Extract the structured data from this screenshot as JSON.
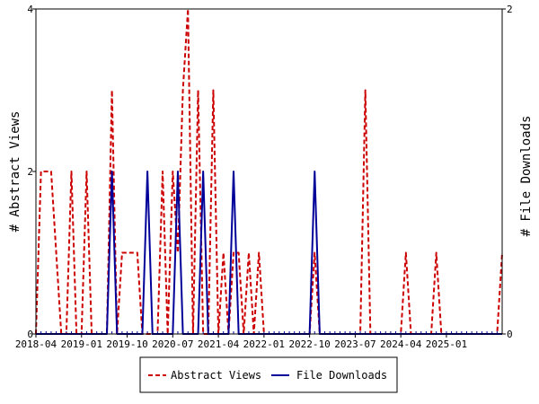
{
  "chart_data": {
    "type": "line",
    "title": "",
    "xlabel": "",
    "ylabel_left": "# Abstract Views",
    "ylabel_right": "# File Downloads",
    "xlim_months": [
      "2018-04",
      "2025-12"
    ],
    "y_left": {
      "range": [
        0,
        4
      ],
      "ticks": [
        0,
        2,
        4
      ]
    },
    "y_right": {
      "range": [
        0,
        2
      ],
      "ticks": [
        0,
        2
      ]
    },
    "x_tick_labels": [
      "2018-04",
      "2019-01",
      "2019-10",
      "2020-07",
      "2021-04",
      "2022-01",
      "2022-10",
      "2023-07",
      "2024-04",
      "2025-01"
    ],
    "grid": false,
    "legend": {
      "placement": "bottom-center"
    },
    "series": [
      {
        "name": "Abstract Views",
        "axis": "left",
        "color": "#cc0000",
        "dash": true,
        "values": [
          {
            "x": "2018-04",
            "y": 0
          },
          {
            "x": "2018-05",
            "y": 2
          },
          {
            "x": "2018-06",
            "y": 2
          },
          {
            "x": "2018-07",
            "y": 2
          },
          {
            "x": "2018-08",
            "y": 1
          },
          {
            "x": "2018-09",
            "y": 0
          },
          {
            "x": "2018-10",
            "y": 0
          },
          {
            "x": "2018-11",
            "y": 2
          },
          {
            "x": "2018-12",
            "y": 0
          },
          {
            "x": "2019-01",
            "y": 0
          },
          {
            "x": "2019-02",
            "y": 2
          },
          {
            "x": "2019-03",
            "y": 0
          },
          {
            "x": "2019-04",
            "y": 0
          },
          {
            "x": "2019-05",
            "y": 0
          },
          {
            "x": "2019-06",
            "y": 0
          },
          {
            "x": "2019-07",
            "y": 3
          },
          {
            "x": "2019-08",
            "y": 0
          },
          {
            "x": "2019-09",
            "y": 1
          },
          {
            "x": "2019-10",
            "y": 1
          },
          {
            "x": "2019-11",
            "y": 1
          },
          {
            "x": "2019-12",
            "y": 1
          },
          {
            "x": "2020-01",
            "y": 0
          },
          {
            "x": "2020-02",
            "y": 0
          },
          {
            "x": "2020-03",
            "y": 0
          },
          {
            "x": "2020-04",
            "y": 0
          },
          {
            "x": "2020-05",
            "y": 2
          },
          {
            "x": "2020-06",
            "y": 0
          },
          {
            "x": "2020-07",
            "y": 2
          },
          {
            "x": "2020-08",
            "y": 1
          },
          {
            "x": "2020-09",
            "y": 3
          },
          {
            "x": "2020-10",
            "y": 4
          },
          {
            "x": "2020-11",
            "y": 0
          },
          {
            "x": "2020-12",
            "y": 3
          },
          {
            "x": "2021-01",
            "y": 0
          },
          {
            "x": "2021-02",
            "y": 0
          },
          {
            "x": "2021-03",
            "y": 3
          },
          {
            "x": "2021-04",
            "y": 0
          },
          {
            "x": "2021-05",
            "y": 1
          },
          {
            "x": "2021-06",
            "y": 0
          },
          {
            "x": "2021-07",
            "y": 1
          },
          {
            "x": "2021-08",
            "y": 1
          },
          {
            "x": "2021-09",
            "y": 0
          },
          {
            "x": "2021-10",
            "y": 1
          },
          {
            "x": "2021-11",
            "y": 0
          },
          {
            "x": "2021-12",
            "y": 1
          },
          {
            "x": "2022-01",
            "y": 0
          },
          {
            "x": "2022-02",
            "y": 0
          },
          {
            "x": "2022-03",
            "y": 0
          },
          {
            "x": "2022-04",
            "y": 0
          },
          {
            "x": "2022-05",
            "y": 0
          },
          {
            "x": "2022-06",
            "y": 0
          },
          {
            "x": "2022-07",
            "y": 0
          },
          {
            "x": "2022-08",
            "y": 0
          },
          {
            "x": "2022-09",
            "y": 0
          },
          {
            "x": "2022-10",
            "y": 0
          },
          {
            "x": "2022-11",
            "y": 1
          },
          {
            "x": "2022-12",
            "y": 0
          },
          {
            "x": "2023-01",
            "y": 0
          },
          {
            "x": "2023-02",
            "y": 0
          },
          {
            "x": "2023-03",
            "y": 0
          },
          {
            "x": "2023-04",
            "y": 0
          },
          {
            "x": "2023-05",
            "y": 0
          },
          {
            "x": "2023-06",
            "y": 0
          },
          {
            "x": "2023-07",
            "y": 0
          },
          {
            "x": "2023-08",
            "y": 0
          },
          {
            "x": "2023-09",
            "y": 3
          },
          {
            "x": "2023-10",
            "y": 0
          },
          {
            "x": "2023-11",
            "y": 0
          },
          {
            "x": "2023-12",
            "y": 0
          },
          {
            "x": "2024-01",
            "y": 0
          },
          {
            "x": "2024-02",
            "y": 0
          },
          {
            "x": "2024-03",
            "y": 0
          },
          {
            "x": "2024-04",
            "y": 0
          },
          {
            "x": "2024-05",
            "y": 1
          },
          {
            "x": "2024-06",
            "y": 0
          },
          {
            "x": "2024-07",
            "y": 0
          },
          {
            "x": "2024-08",
            "y": 0
          },
          {
            "x": "2024-09",
            "y": 0
          },
          {
            "x": "2024-10",
            "y": 0
          },
          {
            "x": "2024-11",
            "y": 1
          },
          {
            "x": "2024-12",
            "y": 0
          },
          {
            "x": "2025-01",
            "y": 0
          },
          {
            "x": "2025-02",
            "y": 0
          },
          {
            "x": "2025-03",
            "y": 0
          },
          {
            "x": "2025-04",
            "y": 0
          },
          {
            "x": "2025-05",
            "y": 0
          },
          {
            "x": "2025-06",
            "y": 0
          },
          {
            "x": "2025-07",
            "y": 0
          },
          {
            "x": "2025-08",
            "y": 0
          },
          {
            "x": "2025-09",
            "y": 0
          },
          {
            "x": "2025-10",
            "y": 0
          },
          {
            "x": "2025-11",
            "y": 0
          },
          {
            "x": "2025-12",
            "y": 1
          }
        ]
      },
      {
        "name": "File Downloads",
        "axis": "right",
        "color": "#000099",
        "dash": false,
        "values": [
          {
            "x": "2018-04",
            "y": 0
          },
          {
            "x": "2019-06",
            "y": 0
          },
          {
            "x": "2019-07",
            "y": 1
          },
          {
            "x": "2019-08",
            "y": 0
          },
          {
            "x": "2020-01",
            "y": 0
          },
          {
            "x": "2020-02",
            "y": 1
          },
          {
            "x": "2020-03",
            "y": 0
          },
          {
            "x": "2020-07",
            "y": 0
          },
          {
            "x": "2020-08",
            "y": 1
          },
          {
            "x": "2020-09",
            "y": 0
          },
          {
            "x": "2020-12",
            "y": 0
          },
          {
            "x": "2021-01",
            "y": 1
          },
          {
            "x": "2021-02",
            "y": 0
          },
          {
            "x": "2021-06",
            "y": 0
          },
          {
            "x": "2021-07",
            "y": 1
          },
          {
            "x": "2021-08",
            "y": 0
          },
          {
            "x": "2022-10",
            "y": 0
          },
          {
            "x": "2022-11",
            "y": 1
          },
          {
            "x": "2022-12",
            "y": 0
          },
          {
            "x": "2025-12",
            "y": 0
          }
        ]
      }
    ]
  }
}
